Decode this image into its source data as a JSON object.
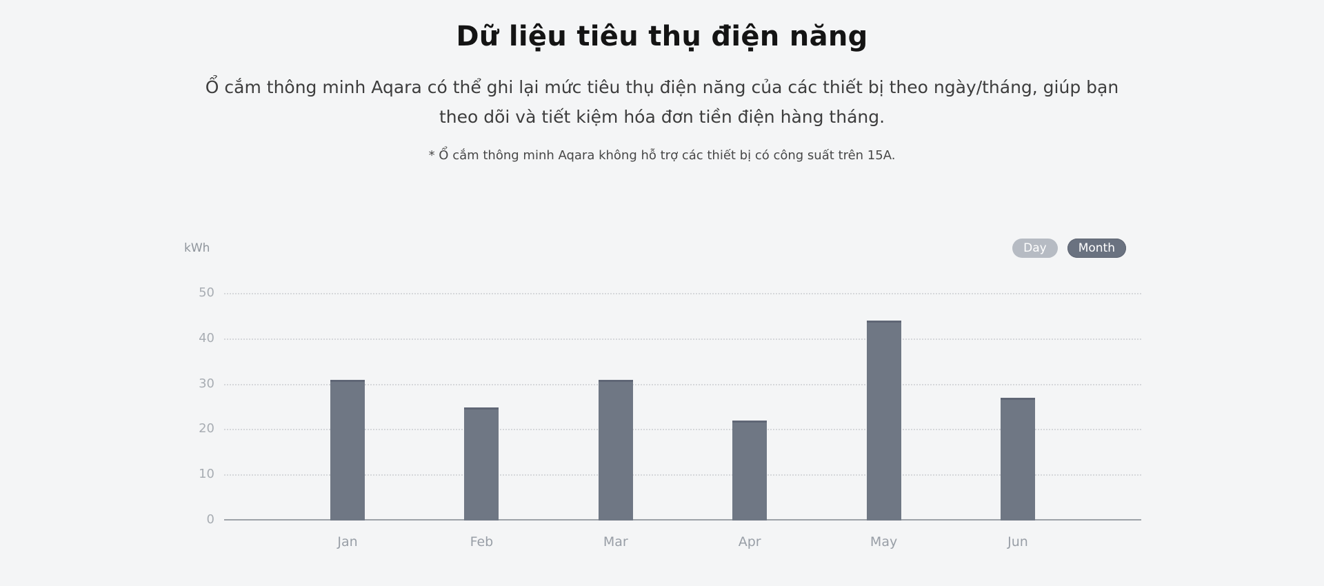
{
  "header": {
    "title": "Dữ liệu tiêu thụ điện năng",
    "subtitle_lines": [
      "Ổ cắm thông minh Aqara có thể ghi lại mức tiêu thụ điện năng của các thiết bị theo ngày/tháng, giúp bạn",
      "theo dõi và tiết kiệm hóa đơn tiền điện hàng tháng."
    ],
    "note": "* Ổ cắm thông minh Aqara không hỗ trợ các thiết bị có công suất trên 15A."
  },
  "chart_controls": {
    "day_label": "Day",
    "month_label": "Month",
    "active": "Month"
  },
  "chart_data": {
    "type": "bar",
    "title": "",
    "xlabel": "",
    "ylabel": "kWh",
    "unit_label": "kWh",
    "categories": [
      "Jan",
      "Feb",
      "Mar",
      "Apr",
      "May",
      "Jun"
    ],
    "values": [
      31,
      25,
      31,
      22,
      44,
      27
    ],
    "yticks": [
      0,
      10,
      20,
      30,
      40,
      50
    ],
    "ylim": [
      0,
      50
    ],
    "grid": "horizontal-dotted",
    "legend_position": "none",
    "bar_color": "#6f7784",
    "bar_cap_color": "#5f6675"
  },
  "colors": {
    "background": "#f4f5f6",
    "title_text": "#141414",
    "body_text": "#3d3d3d",
    "axis_line": "#9da2a8",
    "grid_line": "#d5d7da",
    "tick_text": "#a8adb3",
    "day_pill_bg": "#b6bbc3",
    "month_pill_bg": "#6a7280",
    "pill_text": "#ffffff"
  }
}
